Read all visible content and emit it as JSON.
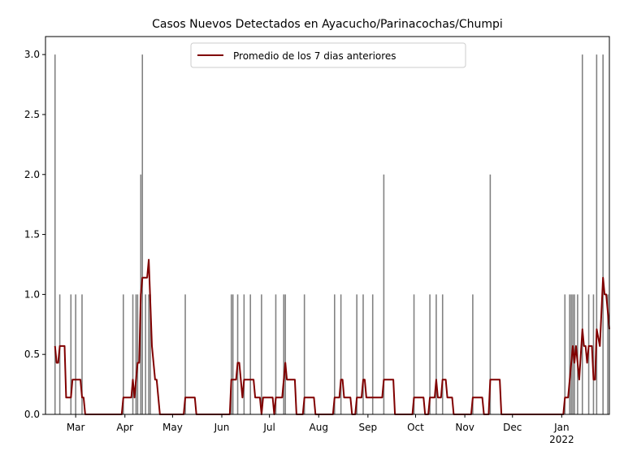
{
  "chart_data": {
    "type": "bar+line",
    "title": "Casos Nuevos Detectados en Ayacucho/Parinacochas/Chumpi",
    "xlim": [
      "2021-02-10",
      "2022-01-31"
    ],
    "xticks": [
      {
        "value": "2021-03-01",
        "label": "Mar"
      },
      {
        "value": "2021-04-01",
        "label": "Apr"
      },
      {
        "value": "2021-05-01",
        "label": "May"
      },
      {
        "value": "2021-06-01",
        "label": "Jun"
      },
      {
        "value": "2021-07-01",
        "label": "Jul"
      },
      {
        "value": "2021-08-01",
        "label": "Aug"
      },
      {
        "value": "2021-09-01",
        "label": "Sep"
      },
      {
        "value": "2021-10-01",
        "label": "Oct"
      },
      {
        "value": "2021-11-01",
        "label": "Nov"
      },
      {
        "value": "2021-12-01",
        "label": "Dec"
      },
      {
        "value": "2022-01-01",
        "label": "Jan\n2022"
      }
    ],
    "ylim": [
      0,
      3.15
    ],
    "yticks": [
      {
        "value": 0,
        "label": "0.0"
      },
      0.5,
      {
        "value": 1,
        "label": "1.0"
      },
      1.5,
      {
        "value": 2,
        "label": "2.0"
      },
      2.5,
      {
        "value": 3,
        "label": "3.0"
      }
    ],
    "legend": "upper center",
    "bars": {
      "color": "#808080",
      "x": [
        "2021-02-16",
        "2021-02-19",
        "2021-02-26",
        "2021-03-01",
        "2021-03-05",
        "2021-03-31",
        "2021-04-06",
        "2021-04-08",
        "2021-04-09",
        "2021-04-11",
        "2021-04-12",
        "2021-04-14",
        "2021-04-16",
        "2021-04-17",
        "2021-05-09",
        "2021-06-07",
        "2021-06-08",
        "2021-06-11",
        "2021-06-15",
        "2021-06-19",
        "2021-06-26",
        "2021-07-05",
        "2021-07-10",
        "2021-07-11",
        "2021-07-23",
        "2021-08-11",
        "2021-08-15",
        "2021-08-25",
        "2021-08-29",
        "2021-09-04",
        "2021-09-11",
        "2021-09-30",
        "2021-10-10",
        "2021-10-14",
        "2021-10-18",
        "2021-11-06",
        "2021-11-17",
        "2022-01-03",
        "2022-01-06",
        "2022-01-07",
        "2022-01-08",
        "2022-01-09",
        "2022-01-11",
        "2022-01-14",
        "2022-01-18",
        "2022-01-21",
        "2022-01-23",
        "2022-01-27",
        "2022-01-30"
      ],
      "values": [
        3,
        1,
        1,
        1,
        1,
        1,
        1,
        1,
        1,
        2,
        3,
        1,
        1,
        1,
        1,
        1,
        1,
        1,
        1,
        1,
        1,
        1,
        1,
        1,
        1,
        1,
        1,
        1,
        1,
        1,
        2,
        1,
        1,
        1,
        1,
        1,
        2,
        1,
        1,
        1,
        1,
        1,
        1,
        3,
        1,
        1,
        3,
        3,
        1
      ]
    },
    "series": [
      {
        "name": "Promedio de los 7 dias anteriores",
        "color": "#800000",
        "x": [
          "2021-02-16",
          "2021-02-17",
          "2021-02-18",
          "2021-02-19",
          "2021-02-22",
          "2021-02-23",
          "2021-02-26",
          "2021-02-27",
          "2021-03-04",
          "2021-03-05",
          "2021-03-06",
          "2021-03-07",
          "2021-03-30",
          "2021-03-31",
          "2021-04-05",
          "2021-04-06",
          "2021-04-07",
          "2021-04-08",
          "2021-04-09",
          "2021-04-10",
          "2021-04-11",
          "2021-04-12",
          "2021-04-15",
          "2021-04-16",
          "2021-04-18",
          "2021-04-20",
          "2021-04-21",
          "2021-04-23",
          "2021-05-08",
          "2021-05-09",
          "2021-05-15",
          "2021-05-16",
          "2021-06-06",
          "2021-06-07",
          "2021-06-10",
          "2021-06-11",
          "2021-06-12",
          "2021-06-14",
          "2021-06-15",
          "2021-06-21",
          "2021-06-22",
          "2021-06-25",
          "2021-06-26",
          "2021-06-27",
          "2021-07-03",
          "2021-07-04",
          "2021-07-05",
          "2021-07-09",
          "2021-07-11",
          "2021-07-12",
          "2021-07-17",
          "2021-07-18",
          "2021-07-22",
          "2021-07-23",
          "2021-07-29",
          "2021-07-30",
          "2021-08-10",
          "2021-08-11",
          "2021-08-14",
          "2021-08-15",
          "2021-08-16",
          "2021-08-17",
          "2021-08-21",
          "2021-08-22",
          "2021-08-24",
          "2021-08-25",
          "2021-08-28",
          "2021-08-29",
          "2021-08-30",
          "2021-08-31",
          "2021-09-10",
          "2021-09-11",
          "2021-09-17",
          "2021-09-18",
          "2021-09-29",
          "2021-09-30",
          "2021-10-06",
          "2021-10-07",
          "2021-10-09",
          "2021-10-10",
          "2021-10-13",
          "2021-10-14",
          "2021-10-15",
          "2021-10-17",
          "2021-10-18",
          "2021-10-20",
          "2021-10-21",
          "2021-10-24",
          "2021-10-25",
          "2021-11-05",
          "2021-11-06",
          "2021-11-12",
          "2021-11-13",
          "2021-11-16",
          "2021-11-17",
          "2021-11-23",
          "2021-11-24",
          "2022-01-02",
          "2022-01-03",
          "2022-01-05",
          "2022-01-07",
          "2022-01-08",
          "2022-01-09",
          "2022-01-10",
          "2022-01-12",
          "2022-01-14",
          "2022-01-15",
          "2022-01-16",
          "2022-01-17",
          "2022-01-18",
          "2022-01-20",
          "2022-01-21",
          "2022-01-22",
          "2022-01-23",
          "2022-01-25",
          "2022-01-27",
          "2022-01-28",
          "2022-01-29",
          "2022-01-31"
        ],
        "values": [
          0.57,
          0.43,
          0.43,
          0.57,
          0.57,
          0.14,
          0.14,
          0.29,
          0.29,
          0.14,
          0.14,
          0,
          0,
          0.14,
          0.14,
          0.29,
          0.14,
          0.29,
          0.43,
          0.43,
          1.0,
          1.14,
          1.14,
          1.29,
          0.57,
          0.29,
          0.29,
          0,
          0,
          0.14,
          0.14,
          0,
          0,
          0.29,
          0.29,
          0.43,
          0.43,
          0.14,
          0.29,
          0.29,
          0.14,
          0.14,
          0,
          0.14,
          0.14,
          0,
          0.14,
          0.14,
          0.43,
          0.29,
          0.29,
          0,
          0,
          0.14,
          0.14,
          0,
          0,
          0.14,
          0.14,
          0.29,
          0.29,
          0.14,
          0.14,
          0,
          0,
          0.14,
          0.14,
          0.29,
          0.29,
          0.14,
          0.14,
          0.29,
          0.29,
          0,
          0,
          0.14,
          0.14,
          0,
          0,
          0.14,
          0.14,
          0.29,
          0.14,
          0.14,
          0.29,
          0.29,
          0.14,
          0.14,
          0,
          0,
          0.14,
          0.14,
          0,
          0,
          0.29,
          0.29,
          0,
          0,
          0.14,
          0.14,
          0.43,
          0.57,
          0.43,
          0.57,
          0.29,
          0.71,
          0.57,
          0.57,
          0.43,
          0.57,
          0.57,
          0.29,
          0.29,
          0.71,
          0.57,
          1.14,
          1.0,
          1.0,
          0.71
        ]
      }
    ]
  }
}
